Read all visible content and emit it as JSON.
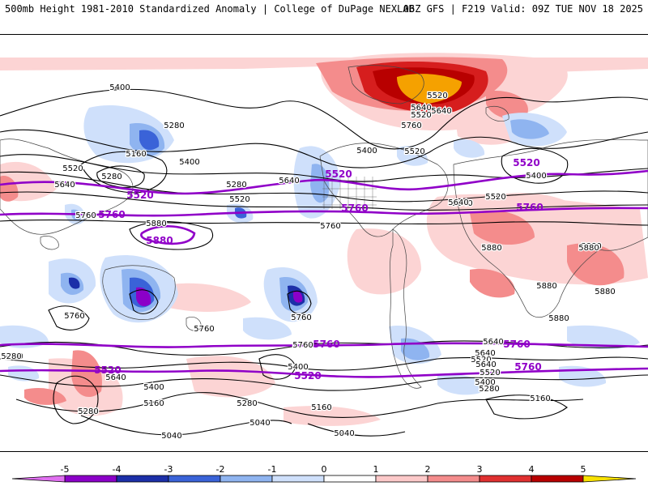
{
  "header": {
    "left": "500mb Height 1981-2010 Standardized Anomaly | College of DuPage NEXLAB",
    "right": "06Z GFS | F219 Valid: 09Z TUE NOV 18 2025"
  },
  "map": {
    "variable": "500mb Height",
    "highlighted_contours": [
      "5520",
      "5760",
      "5880"
    ],
    "contour_labels": [
      {
        "text": "5400",
        "hl": false
      },
      {
        "text": "5280",
        "hl": false
      },
      {
        "text": "5160",
        "hl": false
      },
      {
        "text": "5400",
        "hl": false
      },
      {
        "text": "5520",
        "hl": false
      },
      {
        "text": "5280",
        "hl": false
      },
      {
        "text": "5640",
        "hl": false
      },
      {
        "text": "5520",
        "hl": true
      },
      {
        "text": "5280",
        "hl": false
      },
      {
        "text": "5520",
        "hl": false
      },
      {
        "text": "5640",
        "hl": false
      },
      {
        "text": "5520",
        "hl": true
      },
      {
        "text": "5760",
        "hl": false
      },
      {
        "text": "5760",
        "hl": true
      },
      {
        "text": "5880",
        "hl": false
      },
      {
        "text": "5880",
        "hl": true
      },
      {
        "text": "5520",
        "hl": false
      },
      {
        "text": "5640",
        "hl": false
      },
      {
        "text": "5400",
        "hl": false
      },
      {
        "text": "5520",
        "hl": false
      },
      {
        "text": "5760",
        "hl": true
      },
      {
        "text": "5760",
        "hl": false
      },
      {
        "text": "5640",
        "hl": false
      },
      {
        "text": "5520",
        "hl": false
      },
      {
        "text": "5640",
        "hl": false
      },
      {
        "text": "5760",
        "hl": false
      },
      {
        "text": "5760",
        "hl": true
      },
      {
        "text": "5520",
        "hl": true
      },
      {
        "text": "5400",
        "hl": false
      },
      {
        "text": "5880",
        "hl": false
      },
      {
        "text": "5880",
        "hl": false
      },
      {
        "text": "5880",
        "hl": false
      },
      {
        "text": "5880",
        "hl": false
      },
      {
        "text": "5880",
        "hl": false
      },
      {
        "text": "5880",
        "hl": false
      },
      {
        "text": "5760",
        "hl": false
      },
      {
        "text": "5760",
        "hl": false
      },
      {
        "text": "5760",
        "hl": false
      },
      {
        "text": "5760",
        "hl": false
      },
      {
        "text": "5760",
        "hl": true
      },
      {
        "text": "5640",
        "hl": false
      },
      {
        "text": "5760",
        "hl": true
      },
      {
        "text": "5640",
        "hl": false
      },
      {
        "text": "5520",
        "hl": false
      },
      {
        "text": "5520",
        "hl": false
      },
      {
        "text": "5640",
        "hl": false
      },
      {
        "text": "5400",
        "hl": false
      },
      {
        "text": "5280",
        "hl": false
      },
      {
        "text": "5160",
        "hl": false
      },
      {
        "text": "5280",
        "hl": false
      },
      {
        "text": "5040",
        "hl": false
      },
      {
        "text": "5400",
        "hl": false
      },
      {
        "text": "5520",
        "hl": true
      },
      {
        "text": "5160",
        "hl": false
      },
      {
        "text": "5040",
        "hl": false
      },
      {
        "text": "5640",
        "hl": false
      },
      {
        "text": "5760",
        "hl": true
      },
      {
        "text": "5520",
        "hl": false
      },
      {
        "text": "5400",
        "hl": false
      },
      {
        "text": "5280",
        "hl": false
      },
      {
        "text": "5160",
        "hl": false
      },
      {
        "text": "5040",
        "hl": false
      },
      {
        "text": "5520",
        "hl": true
      },
      {
        "text": "5280",
        "hl": false
      },
      {
        "text": "5520",
        "hl": false
      },
      {
        "text": "5640",
        "hl": false
      }
    ]
  },
  "colorbar": {
    "ticks": [
      "-5",
      "-4",
      "-3",
      "-2",
      "-1",
      "0",
      "1",
      "2",
      "3",
      "4",
      "5"
    ],
    "colors": [
      "#8b00c8",
      "#1c2fa8",
      "#3a63d8",
      "#8fb4f0",
      "#cfe0fb",
      "#ffffff",
      "#ffffff",
      "#fcc9c9",
      "#f48c8c",
      "#e03030",
      "#b80000",
      "#f5a100"
    ],
    "end_low": "#e070f0",
    "end_high": "#f8e100"
  },
  "anomaly_colors": {
    "neg1": "#cfe0fb",
    "neg2": "#8fb4f0",
    "neg3": "#3a63d8",
    "neg4": "#1c2fa8",
    "neg5": "#8b00c8",
    "pos1": "#fcd4d4",
    "pos2": "#f48c8c",
    "pos3": "#d61e1e",
    "pos4": "#b80000",
    "pos5": "#f5a100"
  }
}
